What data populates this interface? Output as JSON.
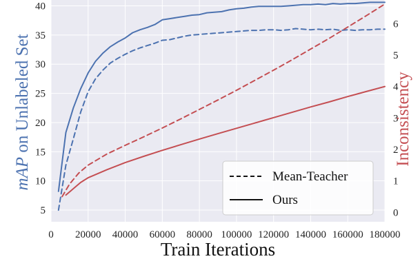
{
  "chart_data": {
    "type": "line",
    "xlabel": "Train Iterations",
    "ylabel_left_prefix": "mAP",
    "ylabel_left_suffix": " on Unlabeled Set",
    "ylabel_right": "Inconsistency",
    "xlim": [
      0,
      180000
    ],
    "ylim_left": [
      3,
      41
    ],
    "ylim_right": [
      -0.3,
      6.75
    ],
    "x_ticks": [
      "0",
      "20000",
      "40000",
      "60000",
      "80000",
      "100000",
      "120000",
      "140000",
      "160000",
      "180000"
    ],
    "y_left_ticks": [
      "5",
      "10",
      "15",
      "20",
      "25",
      "30",
      "35",
      "40"
    ],
    "y_right_ticks": [
      "0",
      "1",
      "2",
      "3",
      "4",
      "5",
      "6"
    ],
    "grid": true,
    "legend": {
      "placement": "bottom-right",
      "entries": [
        {
          "label": "Mean-Teacher",
          "style": "dashed"
        },
        {
          "label": "Ours",
          "style": "solid"
        }
      ]
    },
    "colors": {
      "map": "#4c72b0",
      "inconsistency": "#c44e52",
      "grid_bg": "#eaeaf2"
    },
    "series": [
      {
        "metric": "mAP",
        "axis": "left",
        "method": "Ours",
        "style": "solid",
        "x": [
          4000,
          8000,
          12000,
          16000,
          20000,
          24000,
          28000,
          32000,
          36000,
          40000,
          44000,
          48000,
          52000,
          56000,
          60000,
          64000,
          68000,
          72000,
          76000,
          80000,
          84000,
          88000,
          92000,
          96000,
          100000,
          104000,
          108000,
          112000,
          116000,
          120000,
          124000,
          128000,
          132000,
          136000,
          140000,
          144000,
          148000,
          152000,
          156000,
          160000,
          164000,
          168000,
          172000,
          176000,
          180000
        ],
        "y": [
          8.2,
          18.3,
          22.5,
          25.8,
          28.5,
          30.5,
          31.9,
          33.0,
          33.8,
          34.5,
          35.4,
          35.9,
          36.3,
          36.8,
          37.6,
          37.8,
          38.0,
          38.2,
          38.4,
          38.5,
          38.8,
          38.9,
          39.0,
          39.3,
          39.5,
          39.6,
          39.8,
          39.9,
          39.9,
          39.9,
          39.9,
          40.0,
          40.1,
          40.2,
          40.2,
          40.3,
          40.2,
          40.4,
          40.3,
          40.4,
          40.4,
          40.5,
          40.6,
          40.6,
          40.6
        ]
      },
      {
        "metric": "mAP",
        "axis": "left",
        "method": "Mean-Teacher",
        "style": "dashed",
        "x": [
          4000,
          8000,
          12000,
          16000,
          20000,
          24000,
          28000,
          32000,
          36000,
          40000,
          44000,
          48000,
          52000,
          56000,
          60000,
          64000,
          68000,
          72000,
          76000,
          80000,
          84000,
          88000,
          92000,
          96000,
          100000,
          104000,
          108000,
          112000,
          116000,
          120000,
          124000,
          128000,
          132000,
          136000,
          140000,
          144000,
          148000,
          152000,
          156000,
          160000,
          164000,
          168000,
          172000,
          176000,
          180000
        ],
        "y": [
          5.0,
          12.7,
          17.2,
          21.8,
          25.3,
          27.5,
          29.0,
          30.2,
          31.0,
          31.7,
          32.3,
          32.8,
          33.2,
          33.6,
          34.1,
          34.2,
          34.5,
          34.8,
          35.0,
          35.1,
          35.2,
          35.3,
          35.4,
          35.5,
          35.6,
          35.7,
          35.8,
          35.8,
          35.9,
          35.9,
          35.8,
          35.9,
          36.1,
          36.0,
          35.9,
          36.0,
          35.9,
          36.0,
          35.8,
          35.9,
          35.8,
          35.9,
          35.9,
          36.0,
          36.0
        ]
      },
      {
        "metric": "Inconsistency",
        "axis": "right",
        "method": "Ours",
        "style": "solid",
        "x": [
          8000,
          12000,
          16000,
          20000,
          30000,
          40000,
          50000,
          60000,
          70000,
          80000,
          90000,
          100000,
          110000,
          120000,
          130000,
          140000,
          150000,
          160000,
          170000,
          180000
        ],
        "y": [
          0.55,
          0.75,
          0.95,
          1.1,
          1.35,
          1.58,
          1.78,
          1.97,
          2.15,
          2.33,
          2.5,
          2.67,
          2.84,
          3.01,
          3.18,
          3.35,
          3.51,
          3.68,
          3.84,
          4.0
        ]
      },
      {
        "metric": "Inconsistency",
        "axis": "right",
        "method": "Mean-Teacher",
        "style": "dashed",
        "x": [
          6000,
          10000,
          15000,
          20000,
          30000,
          40000,
          50000,
          60000,
          70000,
          80000,
          90000,
          100000,
          110000,
          120000,
          130000,
          140000,
          150000,
          160000,
          170000,
          180000
        ],
        "y": [
          0.5,
          0.9,
          1.25,
          1.5,
          1.85,
          2.13,
          2.4,
          2.68,
          2.97,
          3.27,
          3.57,
          3.88,
          4.2,
          4.52,
          4.85,
          5.19,
          5.53,
          5.89,
          6.25,
          6.62
        ]
      }
    ]
  }
}
